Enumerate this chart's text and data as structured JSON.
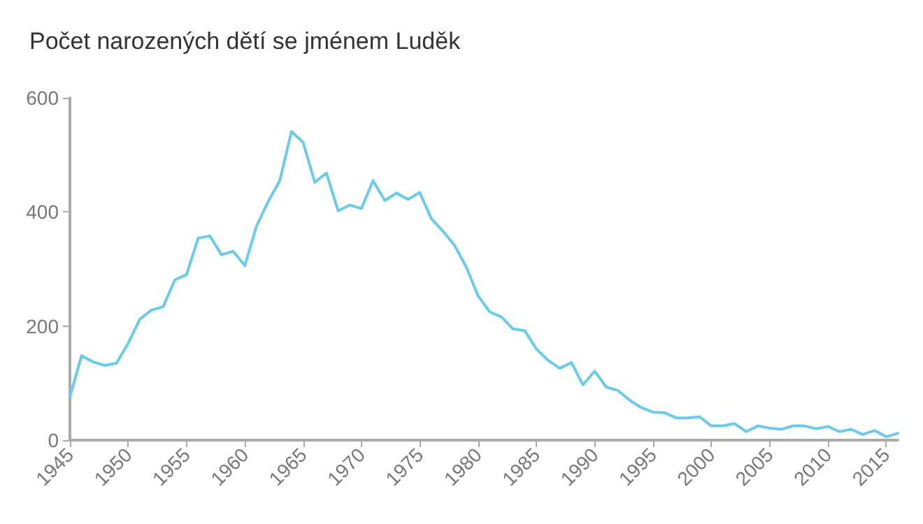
{
  "chart_data": {
    "type": "line",
    "title": "Počet narozených dětí se jménem Luděk",
    "x": [
      1945,
      1946,
      1947,
      1948,
      1949,
      1950,
      1951,
      1952,
      1953,
      1954,
      1955,
      1956,
      1957,
      1958,
      1959,
      1960,
      1961,
      1962,
      1963,
      1964,
      1965,
      1966,
      1967,
      1968,
      1969,
      1970,
      1971,
      1972,
      1973,
      1974,
      1975,
      1976,
      1977,
      1978,
      1979,
      1980,
      1981,
      1982,
      1983,
      1984,
      1985,
      1986,
      1987,
      1988,
      1989,
      1990,
      1991,
      1992,
      1993,
      1994,
      1995,
      1996,
      1997,
      1998,
      1999,
      2000,
      2001,
      2002,
      2003,
      2004,
      2005,
      2006,
      2007,
      2008,
      2009,
      2010,
      2011,
      2012,
      2013,
      2014,
      2015,
      2016
    ],
    "series": [
      {
        "color": "#6ccbea",
        "values": [
          76,
          148,
          137,
          131,
          135,
          170,
          212,
          228,
          234,
          281,
          290,
          354,
          358,
          325,
          331,
          306,
          375,
          418,
          455,
          541,
          522,
          452,
          468,
          402,
          412,
          406,
          455,
          420,
          433,
          422,
          434,
          388,
          366,
          341,
          303,
          253,
          225,
          216,
          195,
          192,
          160,
          140,
          126,
          136,
          97,
          121,
          93,
          87,
          70,
          57,
          49,
          48,
          39,
          39,
          41,
          25,
          25,
          29,
          15,
          25,
          21,
          19,
          25,
          25,
          20,
          24,
          15,
          19,
          10,
          17,
          6,
          12
        ]
      }
    ],
    "xlim": [
      1945,
      2016
    ],
    "xticks": [
      1945,
      1950,
      1955,
      1960,
      1965,
      1970,
      1975,
      1980,
      1985,
      1990,
      1995,
      2000,
      2005,
      2010,
      2015
    ],
    "ylim": [
      0,
      600
    ],
    "yticks": [
      0,
      200,
      400,
      600
    ],
    "grid": false,
    "marker": "none",
    "line_style": "solid"
  }
}
